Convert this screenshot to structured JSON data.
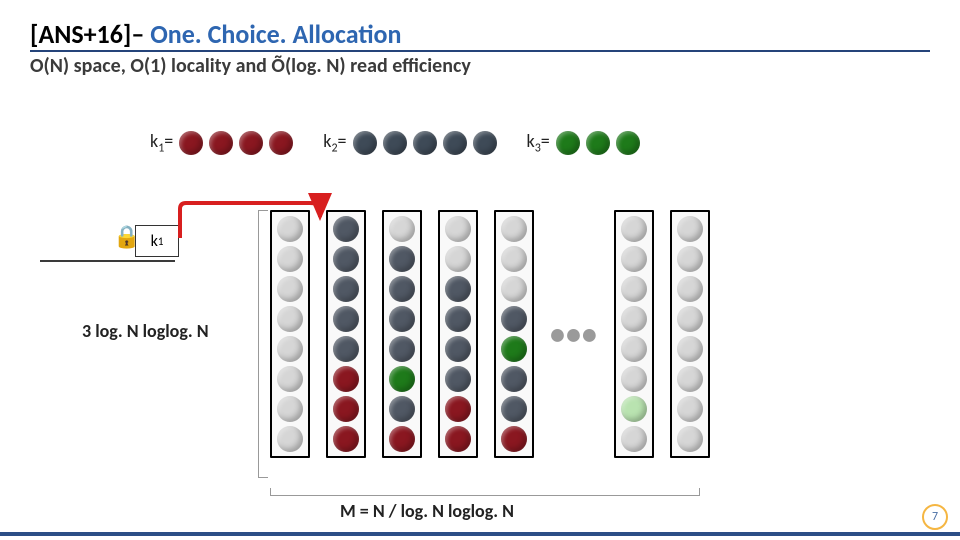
{
  "title_prefix": "[ANS+16]– ",
  "title_blue": "One. Choice. Allocation",
  "subtitle": "O(N) space, O(1) locality and Õ(log. N) read efficiency",
  "keys": [
    {
      "label_html": "k<sub>1</sub>=",
      "count": 4,
      "color": "#8a1720"
    },
    {
      "label_html": "k<sub>2</sub>=",
      "count": 5,
      "color": "#3e4a57"
    },
    {
      "label_html": "k<sub>3</sub>=",
      "count": 3,
      "color": "#1e7a1a"
    }
  ],
  "colors": {
    "empty": "#d6d6d6",
    "red": "#8a1720",
    "slate": "#505864",
    "green": "#1e7a1a",
    "lightgreen": "#b9e3b0",
    "arrow": "#d81f1f",
    "title_blue": "#2e66b1"
  },
  "keybox_html": "k<sub>1</sub>",
  "lock_glyph": "🔒",
  "left_label": "3 log. N loglog. N",
  "bottom_label": "M = N / log. N loglog. N",
  "ellipsis": "•••",
  "page_number": "7",
  "bins_height_cells": 8,
  "bins": [
    [
      "empty",
      "empty",
      "empty",
      "empty",
      "empty",
      "empty",
      "empty",
      "empty"
    ],
    [
      "slate",
      "slate",
      "slate",
      "slate",
      "slate",
      "red",
      "red",
      "red"
    ],
    [
      "empty",
      "slate",
      "slate",
      "slate",
      "slate",
      "green",
      "slate",
      "red"
    ],
    [
      "empty",
      "empty",
      "slate",
      "slate",
      "slate",
      "slate",
      "red",
      "red"
    ],
    [
      "empty",
      "empty",
      "empty",
      "slate",
      "green",
      "slate",
      "slate",
      "red"
    ],
    [
      "empty",
      "empty",
      "empty",
      "empty",
      "empty",
      "empty",
      "lightgreen",
      "empty"
    ],
    [
      "empty",
      "empty",
      "empty",
      "empty",
      "empty",
      "empty",
      "empty",
      "empty"
    ]
  ]
}
